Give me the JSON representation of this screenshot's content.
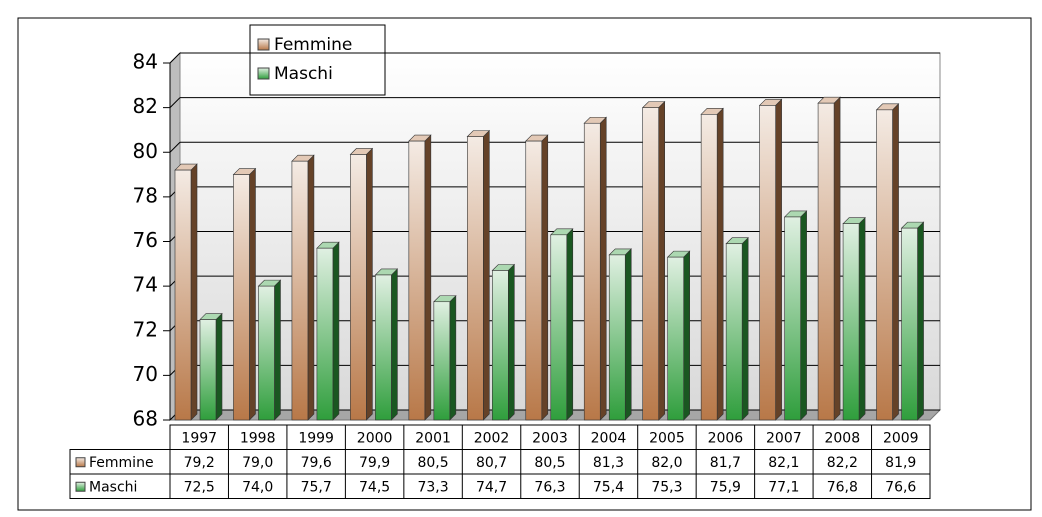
{
  "chart_data": {
    "type": "bar",
    "categories": [
      "1997",
      "1998",
      "1999",
      "2000",
      "2001",
      "2002",
      "2003",
      "2004",
      "2005",
      "2006",
      "2007",
      "2008",
      "2009"
    ],
    "series": [
      {
        "name": "Femmine",
        "color": "#b87848",
        "values": [
          79.2,
          79.0,
          79.6,
          79.9,
          80.5,
          80.7,
          80.5,
          81.3,
          82.0,
          81.7,
          82.1,
          82.2,
          81.9
        ],
        "value_labels": [
          "79,2",
          "79,0",
          "79,6",
          "79,9",
          "80,5",
          "80,7",
          "80,5",
          "81,3",
          "82,0",
          "81,7",
          "82,1",
          "82,2",
          "81,9"
        ]
      },
      {
        "name": "Maschi",
        "color": "#2f9e3c",
        "values": [
          72.5,
          74.0,
          75.7,
          74.5,
          73.3,
          74.7,
          76.3,
          75.4,
          75.3,
          75.9,
          77.1,
          76.8,
          76.6
        ],
        "value_labels": [
          "72,5",
          "74,0",
          "75,7",
          "74,5",
          "73,3",
          "74,7",
          "76,3",
          "75,4",
          "75,3",
          "75,9",
          "77,1",
          "76,8",
          "76,6"
        ]
      }
    ],
    "ylim": [
      68,
      84
    ],
    "yticks": [
      68,
      70,
      72,
      74,
      76,
      78,
      80,
      82,
      84
    ],
    "grid": true,
    "legend": "top-left"
  }
}
